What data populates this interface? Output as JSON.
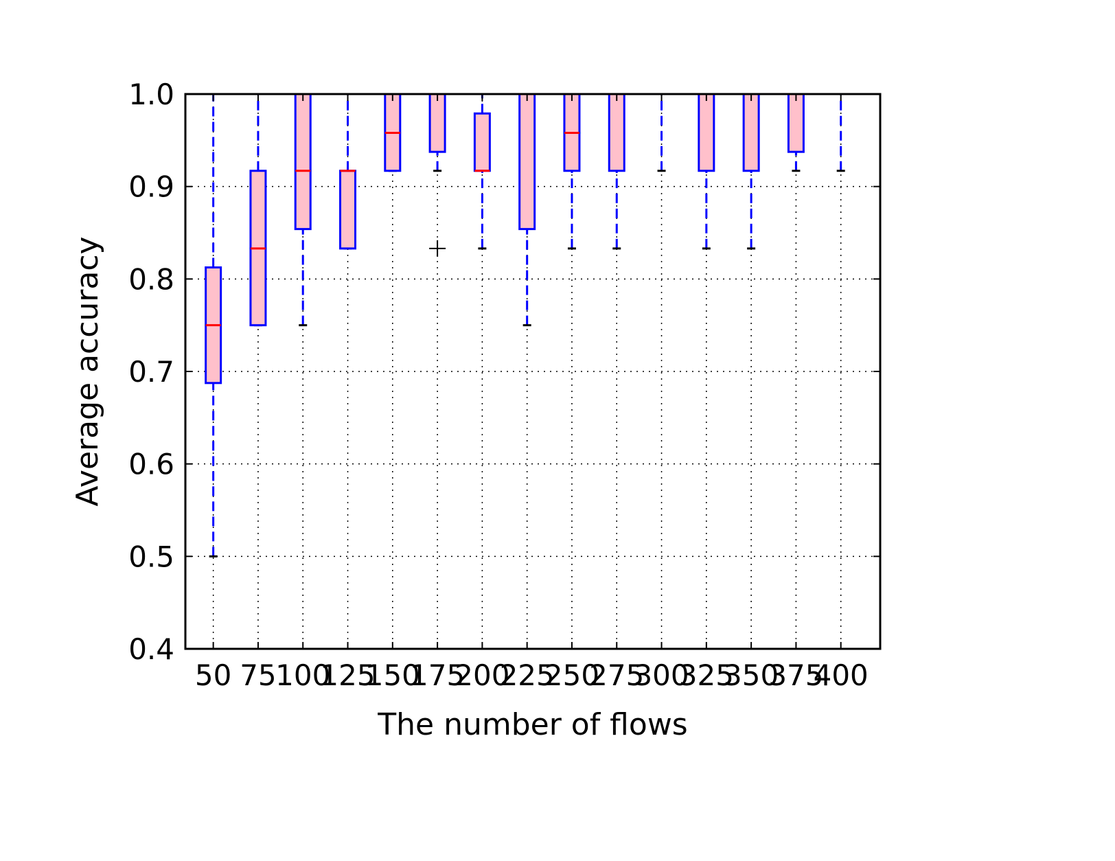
{
  "chart_data": {
    "type": "box",
    "title": "",
    "xlabel": "The number of flows",
    "ylabel": "Average accuracy",
    "categories": [
      "50",
      "75",
      "100",
      "125",
      "150",
      "175",
      "200",
      "225",
      "250",
      "275",
      "300",
      "325",
      "350",
      "375",
      "400"
    ],
    "ylim": [
      0.4,
      1.0
    ],
    "yticks": [
      "0.4",
      "0.5",
      "0.6",
      "0.7",
      "0.8",
      "0.9",
      "1.0"
    ],
    "grid": true,
    "legend": "none",
    "colors": {
      "box_fill": "#ffc0cb",
      "box_edge": "#0000ff",
      "median": "#ff0000",
      "whisker": "#0000ff",
      "cap": "#000000",
      "grid": "#000000",
      "flier": "#000000"
    },
    "boxes": [
      {
        "category": "50",
        "whislo": 0.5,
        "q1": 0.6875,
        "med": 0.75,
        "q3": 0.8125,
        "whishi": 1.0,
        "fliers": []
      },
      {
        "category": "75",
        "whislo": 0.75,
        "q1": 0.75,
        "med": 0.833,
        "q3": 0.917,
        "whishi": 1.0,
        "fliers": []
      },
      {
        "category": "100",
        "whislo": 0.75,
        "q1": 0.854,
        "med": 0.917,
        "q3": 1.0,
        "whishi": 1.0,
        "fliers": []
      },
      {
        "category": "125",
        "whislo": 0.833,
        "q1": 0.833,
        "med": 0.917,
        "q3": 0.917,
        "whishi": 1.0,
        "fliers": []
      },
      {
        "category": "150",
        "whislo": 0.917,
        "q1": 0.917,
        "med": 0.958,
        "q3": 1.0,
        "whishi": 1.0,
        "fliers": []
      },
      {
        "category": "175",
        "whislo": 0.917,
        "q1": 0.9375,
        "med": 1.0,
        "q3": 1.0,
        "whishi": 1.0,
        "fliers": [
          0.833
        ]
      },
      {
        "category": "200",
        "whislo": 0.833,
        "q1": 0.917,
        "med": 0.917,
        "q3": 0.979,
        "whishi": 1.0,
        "fliers": []
      },
      {
        "category": "225",
        "whislo": 0.75,
        "q1": 0.854,
        "med": 1.0,
        "q3": 1.0,
        "whishi": 1.0,
        "fliers": []
      },
      {
        "category": "250",
        "whislo": 0.833,
        "q1": 0.917,
        "med": 0.958,
        "q3": 1.0,
        "whishi": 1.0,
        "fliers": []
      },
      {
        "category": "275",
        "whislo": 0.833,
        "q1": 0.917,
        "med": 1.0,
        "q3": 1.0,
        "whishi": 1.0,
        "fliers": []
      },
      {
        "category": "300",
        "whislo": 0.917,
        "q1": 1.0,
        "med": 1.0,
        "q3": 1.0,
        "whishi": 1.0,
        "fliers": []
      },
      {
        "category": "325",
        "whislo": 0.833,
        "q1": 0.917,
        "med": 1.0,
        "q3": 1.0,
        "whishi": 1.0,
        "fliers": []
      },
      {
        "category": "350",
        "whislo": 0.833,
        "q1": 0.917,
        "med": 1.0,
        "q3": 1.0,
        "whishi": 1.0,
        "fliers": []
      },
      {
        "category": "375",
        "whislo": 0.917,
        "q1": 0.9375,
        "med": 1.0,
        "q3": 1.0,
        "whishi": 1.0,
        "fliers": []
      },
      {
        "category": "400",
        "whislo": 0.917,
        "q1": 1.0,
        "med": 1.0,
        "q3": 1.0,
        "whishi": 1.0,
        "fliers": []
      }
    ]
  }
}
